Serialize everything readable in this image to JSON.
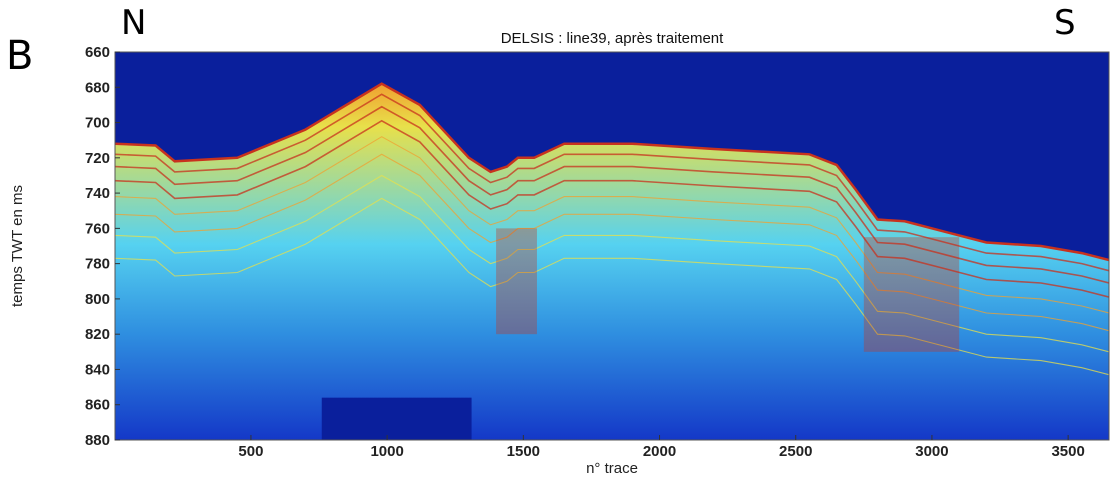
{
  "figure": {
    "panel_letter": "B",
    "north_label": "N",
    "south_label": "S"
  },
  "colors": {
    "ocean": "#0a1f9c",
    "deep": "#1438c8",
    "blue": "#2f8fe0",
    "cyan": "#56d2f0",
    "yellow": "#e8e04a",
    "orange": "#f0a030",
    "red": "#c8321e"
  },
  "chart_data": {
    "type": "heatmap",
    "title": "DELSIS : line39, après traitement",
    "xlabel": "n° trace",
    "ylabel": "temps TWT en ms",
    "xlim": [
      1,
      3650
    ],
    "ylim": [
      880,
      660
    ],
    "x_ticks": [
      500,
      1000,
      1500,
      2000,
      2500,
      3000,
      3500
    ],
    "y_ticks": [
      660,
      680,
      700,
      720,
      740,
      760,
      780,
      800,
      820,
      840,
      860,
      880
    ],
    "colormap": "jet",
    "seafloor_reflector": {
      "trace": [
        1,
        150,
        220,
        450,
        700,
        980,
        1120,
        1300,
        1380,
        1440,
        1480,
        1540,
        1650,
        1900,
        2200,
        2550,
        2650,
        2720,
        2800,
        2900,
        3050,
        3200,
        3400,
        3550,
        3650
      ],
      "twt_ms": [
        712,
        713,
        722,
        720,
        704,
        678,
        690,
        720,
        728,
        725,
        720,
        720,
        712,
        712,
        715,
        718,
        724,
        738,
        755,
        756,
        762,
        768,
        770,
        774,
        778
      ]
    },
    "strong_reflection_zones": [
      {
        "trace_min": 1400,
        "trace_max": 1550,
        "twt_min": 760,
        "twt_max": 820
      },
      {
        "trace_min": 2750,
        "trace_max": 3100,
        "twt_min": 765,
        "twt_max": 830
      }
    ],
    "low_signal_blank": {
      "trace_min": 760,
      "trace_max": 1310,
      "twt_min": 856,
      "twt_max": 880
    }
  }
}
